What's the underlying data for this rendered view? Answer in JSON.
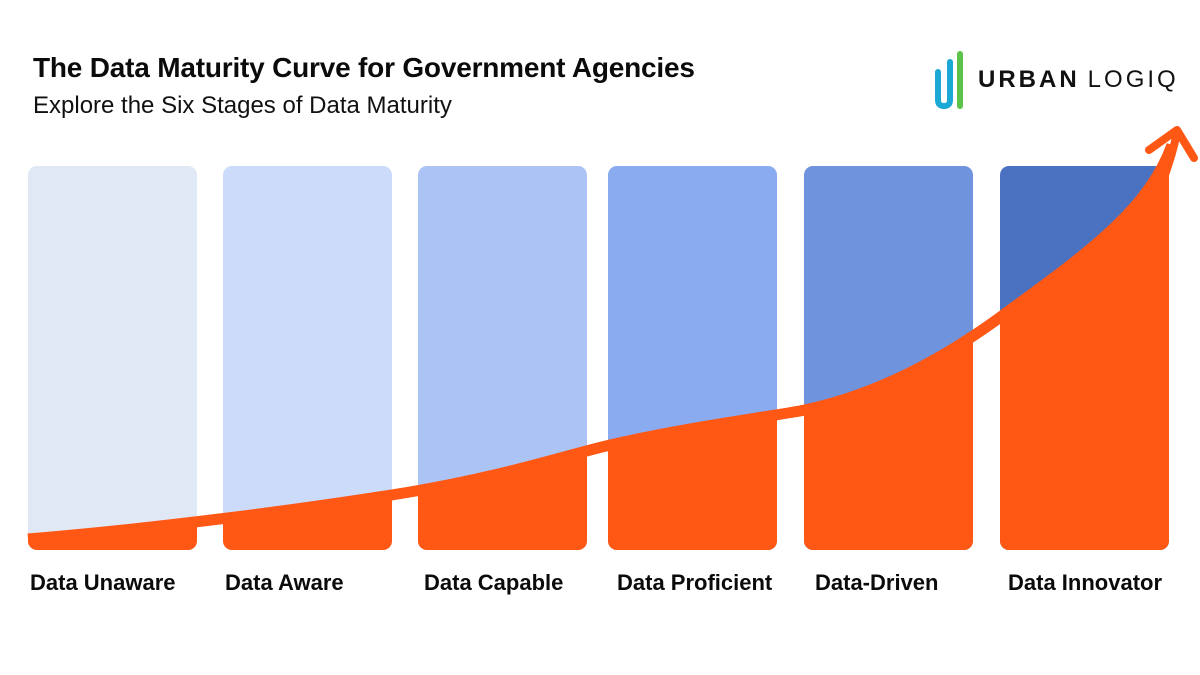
{
  "header": {
    "title": "The Data Maturity Curve for Government Agencies",
    "subtitle": "Explore the Six Stages of Data Maturity"
  },
  "logo": {
    "icon": "urban-logiq-bars-icon",
    "word_bold": "URBAN",
    "word_light": "LOGIQ",
    "colors": {
      "blue": "#1BA8D4",
      "green": "#5CC24A"
    }
  },
  "colors": {
    "curve": "#FF5714",
    "stages": [
      "#E0E7F5",
      "#CDDBFB",
      "#ABC4F5",
      "#8AABF0",
      "#6F93DC",
      "#4B72C0"
    ]
  },
  "stages": [
    {
      "label": "Data Unaware"
    },
    {
      "label": "Data Aware"
    },
    {
      "label": "Data Capable"
    },
    {
      "label": "Data Proficient"
    },
    {
      "label": "Data-Driven"
    },
    {
      "label": "Data Innovator"
    }
  ],
  "curve": {
    "description": "Rising exponential maturity curve with arrowhead, increasing from Data Unaware to Data Innovator",
    "relative_level_at_stage_boundaries": [
      0.05,
      0.1,
      0.17,
      0.29,
      0.38,
      0.6,
      1.0
    ]
  }
}
